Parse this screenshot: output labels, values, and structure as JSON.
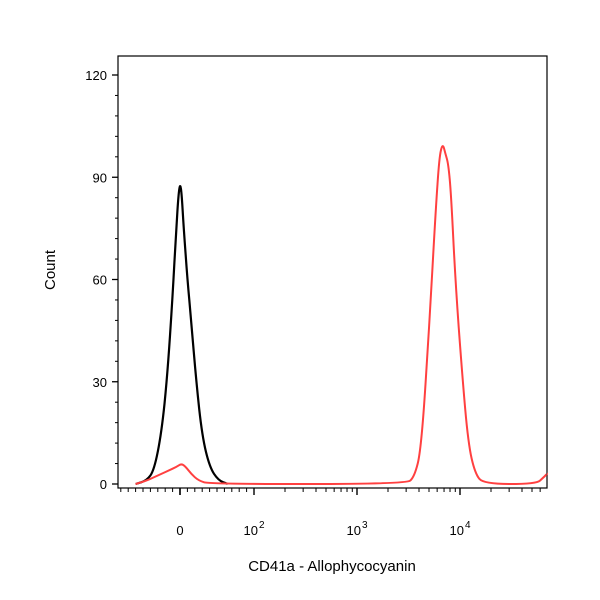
{
  "chart_data": {
    "type": "line",
    "title": "",
    "xlabel": "CD41a - Allophycocyanin",
    "ylabel": "Count",
    "x_scale": "biexponential",
    "ylim": [
      0,
      120
    ],
    "y_ticks": [
      "0",
      "30",
      "60",
      "90",
      "120"
    ],
    "y_tick_values": [
      0,
      30,
      60,
      90,
      120
    ],
    "x_ticks": [
      {
        "base": "0",
        "exp": "",
        "value": 0
      },
      {
        "base": "10",
        "exp": "2",
        "value": 100
      },
      {
        "base": "10",
        "exp": "3",
        "value": 1000
      },
      {
        "base": "10",
        "exp": "4",
        "value": 10000
      }
    ],
    "grid": false,
    "legend": "none",
    "series": [
      {
        "color": "#000000",
        "points": [
          [
            -60,
            0
          ],
          [
            -45,
            1
          ],
          [
            -35,
            4
          ],
          [
            -25,
            15
          ],
          [
            -17,
            32
          ],
          [
            -10,
            55
          ],
          [
            -5,
            75
          ],
          [
            -2,
            85
          ],
          [
            0,
            88
          ],
          [
            2,
            86
          ],
          [
            5,
            75
          ],
          [
            10,
            60
          ],
          [
            15,
            48
          ],
          [
            22,
            30
          ],
          [
            30,
            14
          ],
          [
            40,
            5
          ],
          [
            52,
            1
          ],
          [
            65,
            0
          ]
        ]
      },
      {
        "color": "#ff4040",
        "points": [
          [
            -60,
            0
          ],
          [
            -45,
            1
          ],
          [
            -35,
            2
          ],
          [
            -25,
            3
          ],
          [
            -15,
            4
          ],
          [
            -5,
            5
          ],
          [
            2,
            6
          ],
          [
            8,
            5
          ],
          [
            15,
            3
          ],
          [
            25,
            1
          ],
          [
            40,
            0
          ],
          [
            3000,
            0
          ],
          [
            3600,
            2
          ],
          [
            4200,
            10
          ],
          [
            5000,
            45
          ],
          [
            5800,
            80
          ],
          [
            6300,
            96
          ],
          [
            6800,
            100
          ],
          [
            7200,
            97
          ],
          [
            7700,
            94
          ],
          [
            8200,
            85
          ],
          [
            9000,
            60
          ],
          [
            10500,
            32
          ],
          [
            12000,
            12
          ],
          [
            14000,
            3
          ],
          [
            17000,
            0
          ],
          [
            55000,
            0
          ],
          [
            65000,
            2
          ],
          [
            70000,
            3
          ]
        ]
      }
    ]
  }
}
